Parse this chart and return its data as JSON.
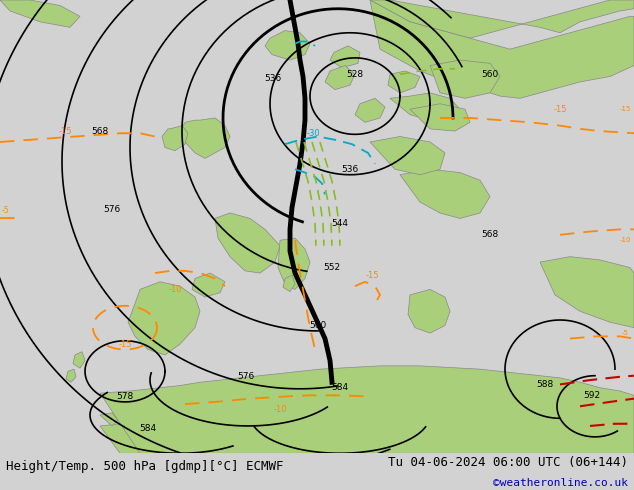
{
  "title_left": "Height/Temp. 500 hPa [gdmp][°C] ECMWF",
  "title_right": "Tu 04-06-2024 06:00 UTC (06+144)",
  "credit": "©weatheronline.co.uk",
  "ocean_color": "#d2d2d2",
  "land_color": "#aacf7a",
  "land_border_color": "#888888",
  "title_bg": "#c8c8b8",
  "title_color": "#000000",
  "credit_color": "#0000bb",
  "black_contour": "#000000",
  "orange_isotherm": "#ff8800",
  "cyan_isotherm": "#00aacc",
  "green_isotherm": "#88bb22",
  "red_isotherm": "#cc0000",
  "fontsize_title": 9,
  "fontsize_credit": 8,
  "figsize": [
    6.34,
    4.9
  ],
  "dpi": 100
}
